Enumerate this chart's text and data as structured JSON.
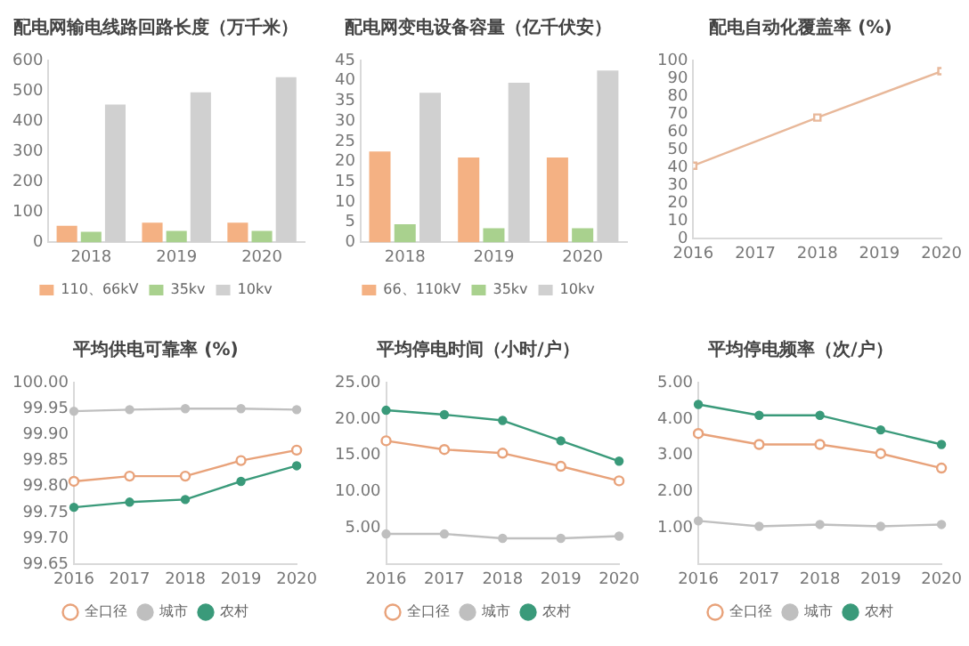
{
  "chart_data": [
    {
      "type": "bar",
      "title": "配电网输电线路回路长度（万千米）",
      "categories": [
        "2018",
        "2019",
        "2020"
      ],
      "series": [
        {
          "name": "110、66kV",
          "color": "#f4b183",
          "values": [
            55,
            65,
            65
          ]
        },
        {
          "name": "35kv",
          "color": "#a9d18e",
          "values": [
            35,
            38,
            38
          ]
        },
        {
          "name": "10kv",
          "color": "#d0d0d0",
          "values": [
            455,
            495,
            545
          ]
        }
      ],
      "ylim": [
        0,
        600
      ],
      "yticks": [
        0,
        100,
        200,
        300,
        400,
        500,
        600
      ],
      "grid": false,
      "legend": "bottom"
    },
    {
      "type": "bar",
      "title": "配电网变电设备容量（亿千伏安）",
      "categories": [
        "2018",
        "2019",
        "2020"
      ],
      "series": [
        {
          "name": "66、110kV",
          "color": "#f4b183",
          "values": [
            22.5,
            21,
            21
          ]
        },
        {
          "name": "35kv",
          "color": "#a9d18e",
          "values": [
            4.5,
            3.5,
            3.5
          ]
        },
        {
          "name": "10kv",
          "color": "#d0d0d0",
          "values": [
            37,
            39.5,
            42.5
          ]
        }
      ],
      "ylim": [
        0,
        45
      ],
      "yticks": [
        0,
        5,
        10,
        15,
        20,
        25,
        30,
        35,
        40,
        45
      ],
      "grid": false,
      "legend": "bottom"
    },
    {
      "type": "line",
      "title": "配电自动化覆盖率 (%)",
      "x": [
        2016,
        2018,
        2020
      ],
      "series": [
        {
          "color": "#e8b89a",
          "values": [
            41,
            68,
            94
          ]
        }
      ],
      "xlim": [
        2016,
        2020
      ],
      "xticks": [
        2016,
        2017,
        2018,
        2019,
        2020
      ],
      "ylim": [
        0,
        100
      ],
      "yticks": [
        0,
        10,
        20,
        30,
        40,
        50,
        60,
        70,
        80,
        90,
        100
      ],
      "grid": false,
      "legend": false,
      "marker": "square"
    },
    {
      "type": "line",
      "title": "平均供电可靠率 (%)",
      "categories": [
        "2016",
        "2017",
        "2018",
        "2019",
        "2020"
      ],
      "series": [
        {
          "name": "全口径",
          "color": "#e8a27a",
          "values": [
            99.81,
            99.82,
            99.82,
            99.85,
            99.87
          ]
        },
        {
          "name": "城市",
          "color": "#bfbfbf",
          "values": [
            99.945,
            99.948,
            99.95,
            99.95,
            99.948
          ]
        },
        {
          "name": "农村",
          "color": "#3a9a7a",
          "values": [
            99.76,
            99.77,
            99.775,
            99.81,
            99.84
          ]
        }
      ],
      "ylim": [
        99.65,
        100
      ],
      "yticks": [
        {
          "value": 99.65,
          "label": "99.65"
        },
        {
          "value": 99.7,
          "label": "99.70"
        },
        {
          "value": 99.75,
          "label": "99.75"
        },
        {
          "value": 99.8,
          "label": "99.80"
        },
        {
          "value": 99.85,
          "label": "99.85"
        },
        {
          "value": 99.9,
          "label": "99.90"
        },
        {
          "value": 99.95,
          "label": "99.95"
        },
        {
          "value": 100,
          "label": "100.00"
        }
      ],
      "grid": false,
      "legend": "bottom",
      "marker": "circle"
    },
    {
      "type": "line",
      "title": "平均停电时间（小时/户）",
      "categories": [
        "2016",
        "2017",
        "2018",
        "2019",
        "2020"
      ],
      "series": [
        {
          "name": "全口径",
          "color": "#e8a27a",
          "values": [
            17,
            15.8,
            15.3,
            13.5,
            11.5
          ]
        },
        {
          "name": "城市",
          "color": "#bfbfbf",
          "values": [
            4.2,
            4.2,
            3.6,
            3.6,
            3.9
          ]
        },
        {
          "name": "农村",
          "color": "#3a9a7a",
          "values": [
            21.2,
            20.6,
            19.8,
            17,
            14.2
          ]
        }
      ],
      "ylim": [
        0,
        25
      ],
      "yticks": [
        {
          "value": 5,
          "label": "5.00"
        },
        {
          "value": 10,
          "label": "10.00"
        },
        {
          "value": 15,
          "label": "15.00"
        },
        {
          "value": 20,
          "label": "20.00"
        },
        {
          "value": 25,
          "label": "25.00"
        }
      ],
      "grid": false,
      "legend": "bottom",
      "marker": "circle"
    },
    {
      "type": "line",
      "title": "平均停电频率（次/户）",
      "categories": [
        "2016",
        "2017",
        "2018",
        "2019",
        "2020"
      ],
      "series": [
        {
          "name": "全口径",
          "color": "#e8a27a",
          "values": [
            3.6,
            3.3,
            3.3,
            3.05,
            2.65
          ]
        },
        {
          "name": "城市",
          "color": "#bfbfbf",
          "values": [
            1.2,
            1.05,
            1.1,
            1.05,
            1.1
          ]
        },
        {
          "name": "农村",
          "color": "#3a9a7a",
          "values": [
            4.4,
            4.1,
            4.1,
            3.7,
            3.3
          ]
        }
      ],
      "ylim": [
        0,
        5
      ],
      "yticks": [
        {
          "value": 1,
          "label": "1.00"
        },
        {
          "value": 2,
          "label": "2.00"
        },
        {
          "value": 3,
          "label": "3.00"
        },
        {
          "value": 4,
          "label": "4.00"
        },
        {
          "value": 5,
          "label": "5.00"
        }
      ],
      "grid": false,
      "legend": "bottom",
      "marker": "circle"
    }
  ]
}
